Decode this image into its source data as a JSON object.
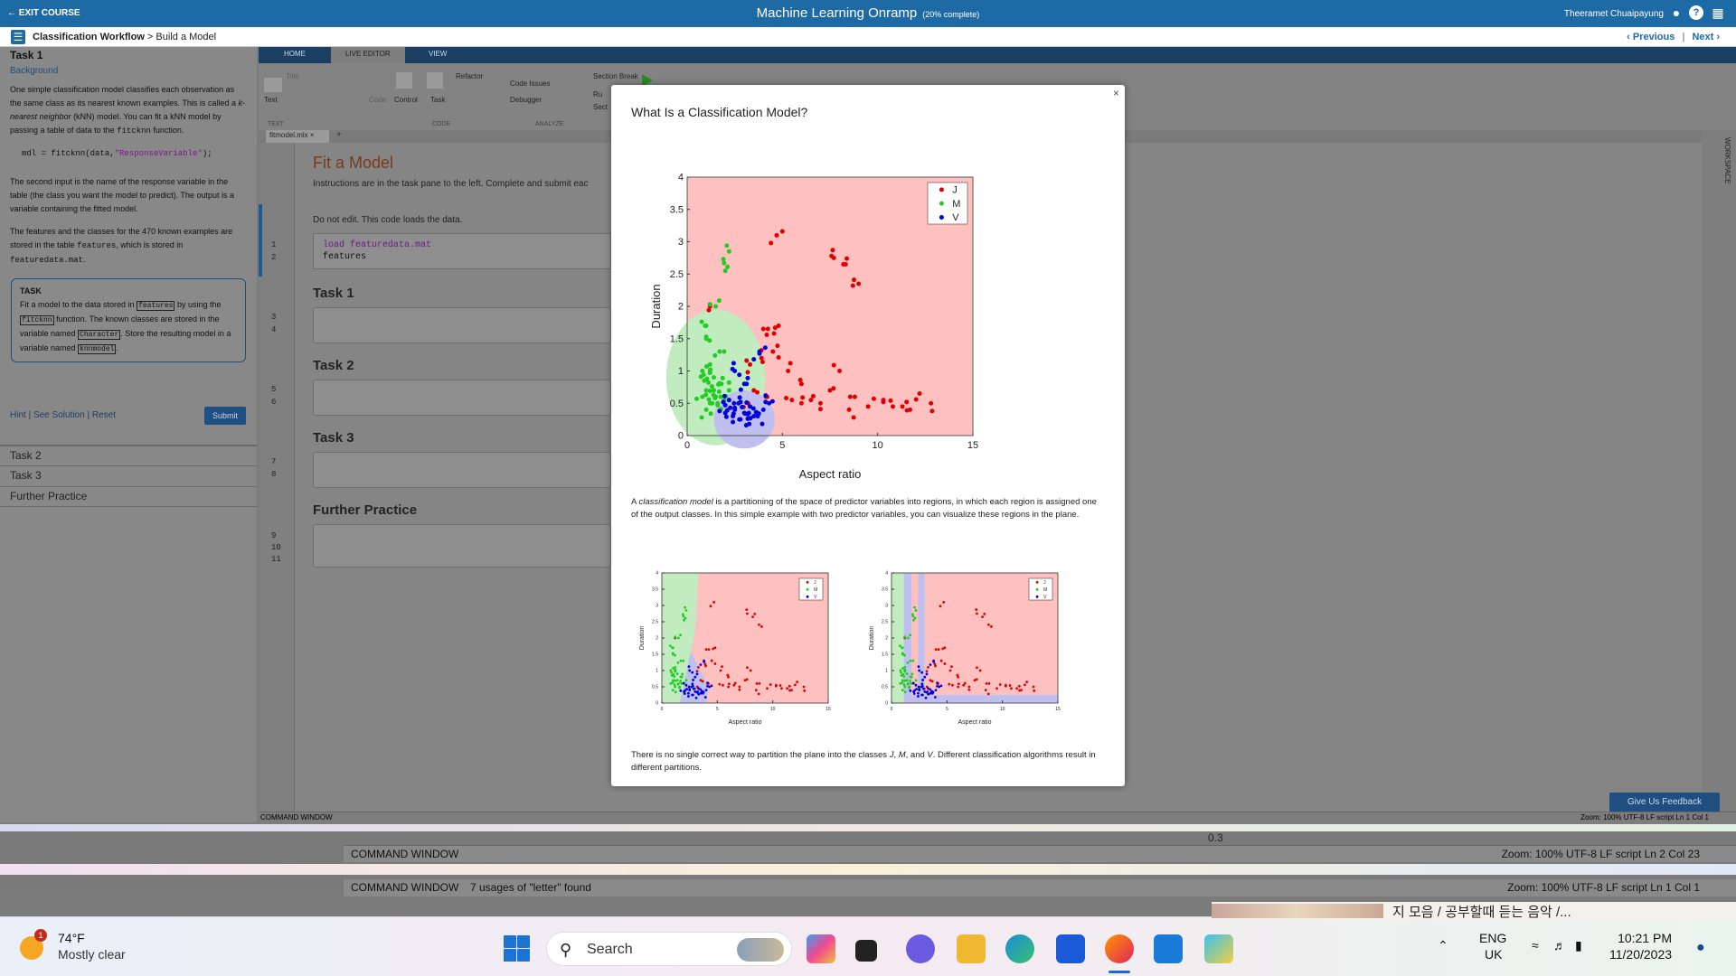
{
  "topbar": {
    "exit": "← EXIT COURSE",
    "title": "Machine Learning Onramp",
    "progress": "(20% complete)",
    "user": "Theeramet Chuaipayung"
  },
  "crumb": {
    "parent": "Classification Workflow",
    "sep": " > ",
    "current": "Build a Model",
    "prev": "‹ Previous",
    "next": "Next ›"
  },
  "left": {
    "task1": "Task 1",
    "background": "Background",
    "p1a": "One simple classification model classifies each observation as the same class as its nearest known examples. This is called a ",
    "p1em": "k-nearest neighbor",
    "p1b": " (kNN) model. You can fit a kNN model by passing a table of data to the ",
    "p1fn": "fitcknn",
    "p1c": " function.",
    "code": "mdl = fitcknn(data,",
    "code_str": "\"ResponseVariable\"",
    "code_end": ");",
    "p2": "The second input is the name of the response variable in the table (the class you want the model to predict). The output is a variable containing the fitted model.",
    "p3a": "The features and the classes for the 470 known examples are stored in the table ",
    "p3b": "features",
    "p3c": ", which is stored in ",
    "p3d": "featuredata.mat",
    "p3e": ".",
    "task_label": "TASK",
    "t1": "Fit a model to the data stored in ",
    "t_features": "features",
    "t2": " by using the ",
    "t_fn": "fitcknn",
    "t3": " function. The known classes are stored in the variable named ",
    "t_char": "Character",
    "t4": ". Store the resulting model in a variable named ",
    "t_model": "knnmodel",
    "t5": ".",
    "hint": "Hint",
    "see": "See Solution",
    "reset": "Reset",
    "submit": "Submit",
    "task2": "Task 2",
    "task3": "Task 3",
    "further": "Further Practice"
  },
  "ribbon": {
    "tabs": [
      "HOME",
      "LIVE EDITOR",
      "VIEW"
    ],
    "text": "Text",
    "code": "Code",
    "control": "Control",
    "task": "Task",
    "refactor": "Refactor",
    "code_issues": "Code Issues",
    "debugger": "Debugger",
    "section_break": "Section Break",
    "text_group": "TEXT",
    "code_group": "CODE",
    "analyze_group": "ANALYZE",
    "run_sec": "Ru",
    "sec": "Sect",
    "title_ph": "Title"
  },
  "editor": {
    "doc_tab": "fitmodel.mlx",
    "fit_title": "Fit a Model",
    "instructions": "Instructions are in the task pane to the left. Complete and submit eac",
    "dont_edit": "Do not edit. This code loads the data.",
    "code1_kw": "load",
    "code1_arg": "featuredata.mat",
    "code2": "features",
    "task1": "Task 1",
    "task2": "Task 2",
    "task3": "Task 3",
    "further": "Further Practice",
    "lines": [
      "1",
      "2",
      "3",
      "4",
      "5",
      "6",
      "7",
      "8",
      "9",
      "10",
      "11"
    ],
    "workspace": "WORKSPACE"
  },
  "status": {
    "cmd1": "COMMAND WINDOW",
    "right1": "Zoom: 100%   UTF-8   LF   script   Ln 1 Col 1",
    "feedback": "Give Us Feedback",
    "cmd2": "COMMAND WINDOW",
    "right2": "Zoom: 100%   UTF-8   LF   script   Ln 2 Col 23",
    "axis_val": "0.3",
    "cmd3": "COMMAND WINDOW",
    "usages": "7 usages of \"letter\" found",
    "right3": "Zoom: 100%   UTF-8   LF   script   Ln 1 Col 1"
  },
  "modal": {
    "title": "What Is a Classification Model?",
    "close": "×",
    "para1a": "A ",
    "para1em": "classification model",
    "para1b": " is a partitioning of the space of predictor variables into regions, in which each region is assigned one of the output classes. In this simple example with two predictor variables, you can visualize these regions in the plane.",
    "para2a": "There is no single correct way to partition the plane into the classes ",
    "para2j": "J",
    "para2m": "M",
    "para2and": ", and ",
    "para2v": "V",
    "para2b": ". Different classification algorithms result in different partitions.",
    "comma": ", "
  },
  "chart_data": [
    {
      "type": "scatter",
      "xlabel": "Aspect ratio",
      "ylabel": "Duration",
      "xlim": [
        0,
        15
      ],
      "ylim": [
        0,
        4
      ],
      "xticks": [
        0,
        5,
        10,
        15
      ],
      "yticks": [
        0,
        0.5,
        1,
        1.5,
        2,
        2.5,
        3,
        3.5,
        4
      ],
      "legend": [
        "J",
        "M",
        "V"
      ],
      "legend_position": "top-right",
      "colors": {
        "J": "#e00000",
        "M": "#22cc22",
        "V": "#0000dd",
        "J_region": "#ffc0c0",
        "M_region": "#c0ecc0",
        "V_region": "#c0c0f0"
      },
      "series": [
        {
          "name": "J",
          "points": [
            [
              4.7,
              3.1
            ],
            [
              7.7,
              2.75
            ],
            [
              8.2,
              2.65
            ],
            [
              9.0,
              2.35
            ],
            [
              1.2,
              2.0
            ],
            [
              4.0,
              1.65
            ],
            [
              4.8,
              1.7
            ],
            [
              3.9,
              1.2
            ],
            [
              4.5,
              1.3
            ],
            [
              3.3,
              1.1
            ],
            [
              5.3,
              1.0
            ],
            [
              8.0,
              1.0
            ],
            [
              6.0,
              0.8
            ],
            [
              7.5,
              0.7
            ],
            [
              8.8,
              0.6
            ],
            [
              10.3,
              0.55
            ],
            [
              11.3,
              0.45
            ],
            [
              12.2,
              0.65
            ],
            [
              12.8,
              0.5
            ],
            [
              9.5,
              0.45
            ],
            [
              10.8,
              0.45
            ],
            [
              6.5,
              0.55
            ],
            [
              5.5,
              0.55
            ],
            [
              4.2,
              0.6
            ],
            [
              3.5,
              0.7
            ],
            [
              3.2,
              0.5
            ],
            [
              7.0,
              0.5
            ],
            [
              8.5,
              0.4
            ],
            [
              11.7,
              0.4
            ],
            [
              6.0,
              0.5
            ]
          ]
        },
        {
          "name": "M",
          "points": [
            [
              2.2,
              2.85
            ],
            [
              2.0,
              2.55
            ],
            [
              1.5,
              2.0
            ],
            [
              1.0,
              1.7
            ],
            [
              1.0,
              1.5
            ],
            [
              1.7,
              1.3
            ],
            [
              1.2,
              1.1
            ],
            [
              0.8,
              1.0
            ],
            [
              1.4,
              0.9
            ],
            [
              1.8,
              0.8
            ],
            [
              1.0,
              0.7
            ],
            [
              1.5,
              0.6
            ],
            [
              1.2,
              0.5
            ],
            [
              0.8,
              0.6
            ],
            [
              2.0,
              0.6
            ],
            [
              1.6,
              0.5
            ],
            [
              1.0,
              0.4
            ],
            [
              2.2,
              0.7
            ],
            [
              1.4,
              0.7
            ],
            [
              0.9,
              0.85
            ]
          ]
        },
        {
          "name": "V",
          "points": [
            [
              3.8,
              1.3
            ],
            [
              2.5,
              1.0
            ],
            [
              3.0,
              0.8
            ],
            [
              2.2,
              0.55
            ],
            [
              2.5,
              0.4
            ],
            [
              3.0,
              0.35
            ],
            [
              3.5,
              0.3
            ],
            [
              2.0,
              0.35
            ],
            [
              2.8,
              0.25
            ],
            [
              3.3,
              0.45
            ],
            [
              4.0,
              0.4
            ],
            [
              2.4,
              0.3
            ],
            [
              3.7,
              0.3
            ],
            [
              4.3,
              0.5
            ],
            [
              2.7,
              0.5
            ]
          ]
        }
      ]
    },
    {
      "type": "scatter",
      "xlabel": "Aspect ratio",
      "ylabel": "Duration",
      "xlim": [
        0,
        15
      ],
      "ylim": [
        0,
        4
      ],
      "xticks": [
        0,
        5,
        10,
        15
      ],
      "yticks": [
        0,
        0.5,
        1,
        1.5,
        2,
        2.5,
        3,
        3.5,
        4
      ],
      "legend": [
        "J",
        "M",
        "V"
      ],
      "legend_position": "top-right"
    },
    {
      "type": "scatter",
      "xlabel": "Aspect ratio",
      "ylabel": "Duration",
      "xlim": [
        0,
        15
      ],
      "ylim": [
        0,
        4
      ],
      "xticks": [
        0,
        5,
        10,
        15
      ],
      "yticks": [
        0,
        0.5,
        1,
        1.5,
        2,
        2.5,
        3,
        3.5,
        4
      ],
      "legend": [
        "J",
        "M",
        "V"
      ],
      "legend_position": "top-right"
    }
  ],
  "taskbar": {
    "badge": "1",
    "temp": "74°F",
    "cond": "Mostly clear",
    "search": "Search",
    "korean": "지 모음 / 공부할때 듣는 음악 /...",
    "lang1": "ENG",
    "lang2": "UK",
    "time": "10:21 PM",
    "date": "11/20/2023"
  }
}
